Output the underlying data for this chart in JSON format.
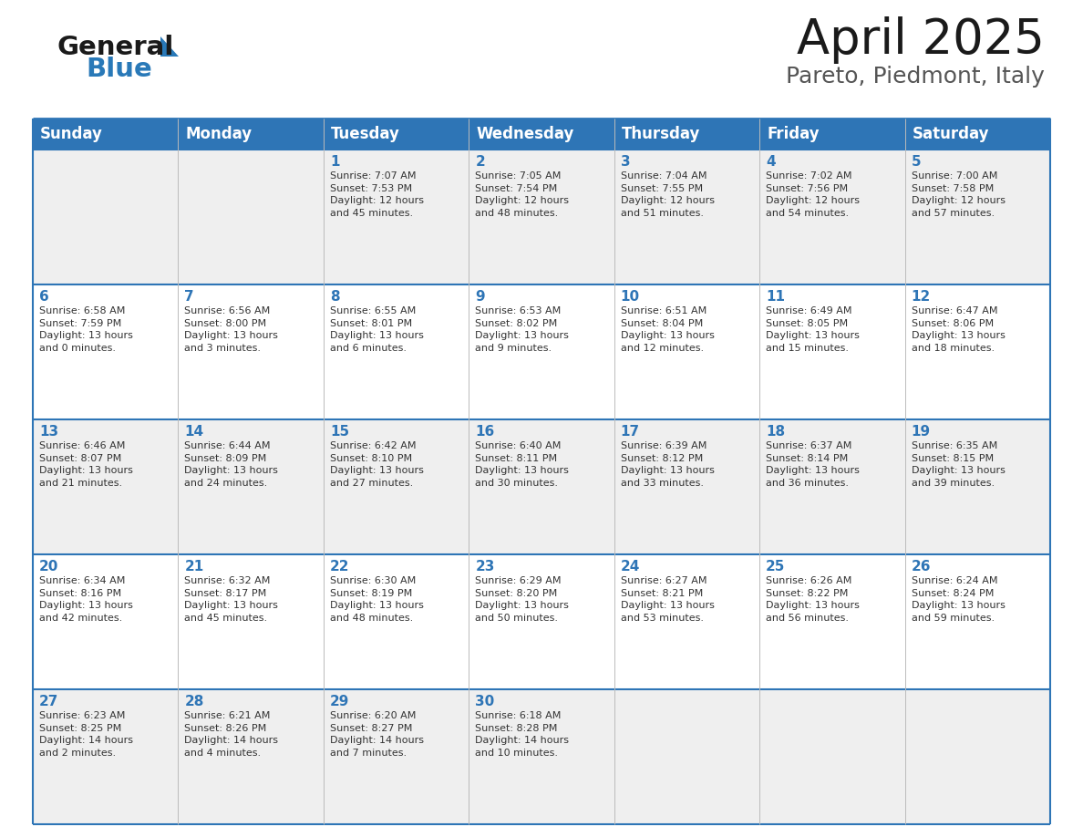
{
  "title": "April 2025",
  "subtitle": "Pareto, Piedmont, Italy",
  "header_color": "#2E75B6",
  "header_text_color": "#FFFFFF",
  "cell_bg_light": "#EFEFEF",
  "cell_bg_white": "#FFFFFF",
  "day_number_color": "#2E75B6",
  "text_color": "#333333",
  "line_color": "#2E75B6",
  "days_of_week": [
    "Sunday",
    "Monday",
    "Tuesday",
    "Wednesday",
    "Thursday",
    "Friday",
    "Saturday"
  ],
  "weeks": [
    [
      {
        "day": "",
        "info": ""
      },
      {
        "day": "",
        "info": ""
      },
      {
        "day": "1",
        "info": "Sunrise: 7:07 AM\nSunset: 7:53 PM\nDaylight: 12 hours\nand 45 minutes."
      },
      {
        "day": "2",
        "info": "Sunrise: 7:05 AM\nSunset: 7:54 PM\nDaylight: 12 hours\nand 48 minutes."
      },
      {
        "day": "3",
        "info": "Sunrise: 7:04 AM\nSunset: 7:55 PM\nDaylight: 12 hours\nand 51 minutes."
      },
      {
        "day": "4",
        "info": "Sunrise: 7:02 AM\nSunset: 7:56 PM\nDaylight: 12 hours\nand 54 minutes."
      },
      {
        "day": "5",
        "info": "Sunrise: 7:00 AM\nSunset: 7:58 PM\nDaylight: 12 hours\nand 57 minutes."
      }
    ],
    [
      {
        "day": "6",
        "info": "Sunrise: 6:58 AM\nSunset: 7:59 PM\nDaylight: 13 hours\nand 0 minutes."
      },
      {
        "day": "7",
        "info": "Sunrise: 6:56 AM\nSunset: 8:00 PM\nDaylight: 13 hours\nand 3 minutes."
      },
      {
        "day": "8",
        "info": "Sunrise: 6:55 AM\nSunset: 8:01 PM\nDaylight: 13 hours\nand 6 minutes."
      },
      {
        "day": "9",
        "info": "Sunrise: 6:53 AM\nSunset: 8:02 PM\nDaylight: 13 hours\nand 9 minutes."
      },
      {
        "day": "10",
        "info": "Sunrise: 6:51 AM\nSunset: 8:04 PM\nDaylight: 13 hours\nand 12 minutes."
      },
      {
        "day": "11",
        "info": "Sunrise: 6:49 AM\nSunset: 8:05 PM\nDaylight: 13 hours\nand 15 minutes."
      },
      {
        "day": "12",
        "info": "Sunrise: 6:47 AM\nSunset: 8:06 PM\nDaylight: 13 hours\nand 18 minutes."
      }
    ],
    [
      {
        "day": "13",
        "info": "Sunrise: 6:46 AM\nSunset: 8:07 PM\nDaylight: 13 hours\nand 21 minutes."
      },
      {
        "day": "14",
        "info": "Sunrise: 6:44 AM\nSunset: 8:09 PM\nDaylight: 13 hours\nand 24 minutes."
      },
      {
        "day": "15",
        "info": "Sunrise: 6:42 AM\nSunset: 8:10 PM\nDaylight: 13 hours\nand 27 minutes."
      },
      {
        "day": "16",
        "info": "Sunrise: 6:40 AM\nSunset: 8:11 PM\nDaylight: 13 hours\nand 30 minutes."
      },
      {
        "day": "17",
        "info": "Sunrise: 6:39 AM\nSunset: 8:12 PM\nDaylight: 13 hours\nand 33 minutes."
      },
      {
        "day": "18",
        "info": "Sunrise: 6:37 AM\nSunset: 8:14 PM\nDaylight: 13 hours\nand 36 minutes."
      },
      {
        "day": "19",
        "info": "Sunrise: 6:35 AM\nSunset: 8:15 PM\nDaylight: 13 hours\nand 39 minutes."
      }
    ],
    [
      {
        "day": "20",
        "info": "Sunrise: 6:34 AM\nSunset: 8:16 PM\nDaylight: 13 hours\nand 42 minutes."
      },
      {
        "day": "21",
        "info": "Sunrise: 6:32 AM\nSunset: 8:17 PM\nDaylight: 13 hours\nand 45 minutes."
      },
      {
        "day": "22",
        "info": "Sunrise: 6:30 AM\nSunset: 8:19 PM\nDaylight: 13 hours\nand 48 minutes."
      },
      {
        "day": "23",
        "info": "Sunrise: 6:29 AM\nSunset: 8:20 PM\nDaylight: 13 hours\nand 50 minutes."
      },
      {
        "day": "24",
        "info": "Sunrise: 6:27 AM\nSunset: 8:21 PM\nDaylight: 13 hours\nand 53 minutes."
      },
      {
        "day": "25",
        "info": "Sunrise: 6:26 AM\nSunset: 8:22 PM\nDaylight: 13 hours\nand 56 minutes."
      },
      {
        "day": "26",
        "info": "Sunrise: 6:24 AM\nSunset: 8:24 PM\nDaylight: 13 hours\nand 59 minutes."
      }
    ],
    [
      {
        "day": "27",
        "info": "Sunrise: 6:23 AM\nSunset: 8:25 PM\nDaylight: 14 hours\nand 2 minutes."
      },
      {
        "day": "28",
        "info": "Sunrise: 6:21 AM\nSunset: 8:26 PM\nDaylight: 14 hours\nand 4 minutes."
      },
      {
        "day": "29",
        "info": "Sunrise: 6:20 AM\nSunset: 8:27 PM\nDaylight: 14 hours\nand 7 minutes."
      },
      {
        "day": "30",
        "info": "Sunrise: 6:18 AM\nSunset: 8:28 PM\nDaylight: 14 hours\nand 10 minutes."
      },
      {
        "day": "",
        "info": ""
      },
      {
        "day": "",
        "info": ""
      },
      {
        "day": "",
        "info": ""
      }
    ]
  ],
  "logo_general_color": "#1a1a1a",
  "logo_blue_color": "#2979B8",
  "logo_triangle_color": "#2979B8",
  "title_fontsize": 38,
  "subtitle_fontsize": 18,
  "header_fontsize": 12,
  "day_num_fontsize": 11,
  "info_fontsize": 8
}
